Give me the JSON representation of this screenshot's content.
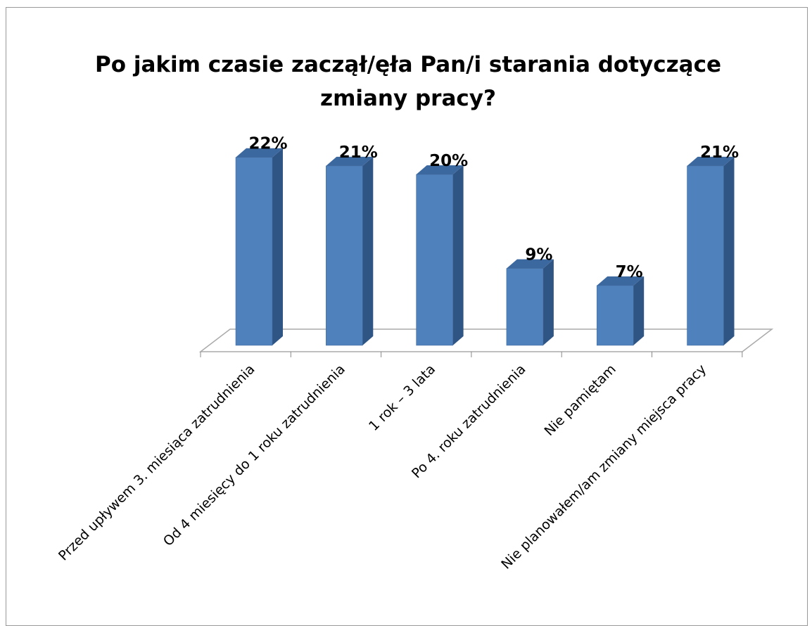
{
  "chart_data": {
    "type": "bar3d",
    "title": "Po jakim czasie zaczął/ęła Pan/i starania dotyczące zmiany pracy?",
    "categories": [
      "Przed upływem 3. miesiąca zatrudnienia",
      "Od 4 miesięcy do 1 roku zatrudnienia",
      "1 rok – 3 lata",
      "Po 4. roku zatrudnienia",
      "Nie pamiętam",
      "Nie planowałem/am zmiany miejsca pracy"
    ],
    "values": [
      22,
      21,
      20,
      9,
      7,
      21
    ],
    "value_labels": [
      "22%",
      "21%",
      "20%",
      "9%",
      "7%",
      "21%"
    ],
    "color": "#4f81bd"
  }
}
